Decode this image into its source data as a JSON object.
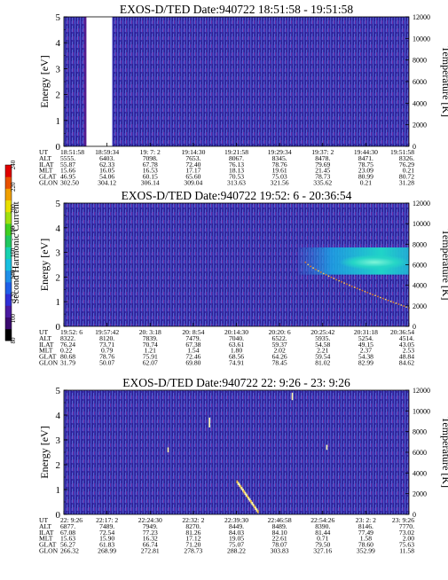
{
  "figure": {
    "energy_label": "Energy [eV]",
    "temperature_label": "Temperature [K]",
    "colorbar_label": "Second Harmonic Current",
    "colorbar_ticks": [
      "80",
      "100",
      "120",
      "140",
      "160",
      "180",
      "200",
      "220",
      "240"
    ]
  },
  "chart_data": [
    {
      "type": "heatmap",
      "title": "EXOS-D/TED   Date:940722  18:51:58 - 19:51:58",
      "ylabel": "Energy [eV]",
      "ylim": [
        0,
        5
      ],
      "yticks": [
        "0",
        "1",
        "2",
        "3",
        "4",
        "5"
      ],
      "y2label": "Temperature [K]",
      "y2lim": [
        0,
        12000
      ],
      "y2ticks": [
        "0",
        "2000",
        "4000",
        "6000",
        "8000",
        "10000",
        "12000"
      ],
      "data_gap": [
        0.065,
        0.14
      ],
      "features": [],
      "table": {
        "row_labels": [
          "UT",
          "ALT",
          "ILAT",
          "MLT",
          "GLAT",
          "GLON"
        ],
        "columns": [
          [
            "18:51:58",
            "5555.",
            "55.87",
            "15.66",
            "46.95",
            "302.50"
          ],
          [
            "18:59:34",
            "6403.",
            "62.33",
            "16.05",
            "54.06",
            "304.12"
          ],
          [
            "19: 7: 2",
            "7098.",
            "67.78",
            "16.53",
            "60.15",
            "306.14"
          ],
          [
            "19:14:30",
            "7653.",
            "72.40",
            "17.17",
            "65.60",
            "309.04"
          ],
          [
            "19:21:58",
            "8067.",
            "76.13",
            "18.13",
            "70.53",
            "313.63"
          ],
          [
            "19:29:34",
            "8345.",
            "78.76",
            "19.61",
            "75.03",
            "321.56"
          ],
          [
            "19:37: 2",
            "8478.",
            "79.69",
            "21.45",
            "78.73",
            "335.62"
          ],
          [
            "19:44:30",
            "8471.",
            "78.75",
            "23.09",
            "80.99",
            "0.21"
          ],
          [
            "19:51:58",
            "8326.",
            "76.29",
            "0.21",
            "80.72",
            "31.28"
          ]
        ]
      }
    },
    {
      "type": "heatmap",
      "title": "EXOS-D/TED   Date:940722  19:52: 6 - 20:36:54",
      "ylabel": "Energy [eV]",
      "ylim": [
        0,
        5
      ],
      "yticks": [
        "0",
        "1",
        "2",
        "3",
        "4",
        "5"
      ],
      "y2label": "Temperature [K]",
      "y2lim": [
        0,
        12000
      ],
      "y2ticks": [
        "0",
        "2000",
        "4000",
        "6000",
        "8000",
        "10000",
        "12000"
      ],
      "data_gap": null,
      "features": [
        {
          "kind": "band",
          "x": [
            0.68,
            1.0
          ],
          "y": [
            2.1,
            3.2
          ],
          "peak_y": 2.6,
          "peak_x": 0.9,
          "level": 180
        },
        {
          "kind": "trace",
          "x": [
            0.7,
            1.0
          ],
          "y": [
            2.6,
            0.75
          ],
          "level": 230
        }
      ],
      "table": {
        "row_labels": [
          "UT",
          "ALT",
          "ILAT",
          "MLT",
          "GLAT",
          "GLON"
        ],
        "columns": [
          [
            "19:52: 6",
            "8322.",
            "76.24",
            "0.22",
            "80.68",
            "31.79"
          ],
          [
            "19:57:42",
            "8120.",
            "73.71",
            "0.79",
            "78.76",
            "50.07"
          ],
          [
            "20: 3:18",
            "7839.",
            "70.74",
            "1.21",
            "75.91",
            "62.07"
          ],
          [
            "20: 8:54",
            "7479.",
            "67.38",
            "1.54",
            "72.46",
            "69.80"
          ],
          [
            "20:14:30",
            "7040.",
            "63.61",
            "1.80",
            "68.56",
            "74.91"
          ],
          [
            "20:20: 6",
            "6522.",
            "59.37",
            "2.02",
            "64.26",
            "78.45"
          ],
          [
            "20:25:42",
            "5935.",
            "54.58",
            "2.21",
            "59.54",
            "81.02"
          ],
          [
            "20:31:18",
            "5254.",
            "49.15",
            "2.37",
            "54.38",
            "82.99"
          ],
          [
            "20:36:54",
            "4514.",
            "43.05",
            "2.53",
            "48.84",
            "84.62"
          ]
        ]
      }
    },
    {
      "type": "heatmap",
      "title": "EXOS-D/TED   Date:940722  22: 9:26 - 23: 9:26",
      "ylabel": "Energy [eV]",
      "ylim": [
        0,
        5
      ],
      "yticks": [
        "0",
        "1",
        "2",
        "3",
        "4",
        "5"
      ],
      "y2label": "Temperature [K]",
      "y2lim": [
        0,
        12000
      ],
      "y2ticks": [
        "0",
        "2000",
        "4000",
        "6000",
        "8000",
        "10000",
        "12000"
      ],
      "data_gap": null,
      "features": [
        {
          "kind": "streak",
          "x": [
            0.5,
            0.56
          ],
          "y": [
            1.3,
            0.1
          ],
          "level": 240
        },
        {
          "kind": "spot",
          "x": [
            0.42,
            0.422
          ],
          "y": [
            3.5,
            3.9
          ],
          "level": 240
        },
        {
          "kind": "spot",
          "x": [
            0.66,
            0.664
          ],
          "y": [
            4.6,
            4.9
          ],
          "level": 240
        },
        {
          "kind": "spot",
          "x": [
            0.3,
            0.302
          ],
          "y": [
            2.5,
            2.7
          ],
          "level": 240
        },
        {
          "kind": "spot",
          "x": [
            0.76,
            0.763
          ],
          "y": [
            2.6,
            2.8
          ],
          "level": 240
        }
      ],
      "table": {
        "row_labels": [
          "UT",
          "ALT",
          "ILAT",
          "MLT",
          "GLAT",
          "GLON"
        ],
        "columns": [
          [
            "22: 9:26",
            "6877.",
            "67.08",
            "15.63",
            "56.27",
            "266.32"
          ],
          [
            "22:17: 2",
            "7489.",
            "72.54",
            "15.90",
            "61.83",
            "268.99"
          ],
          [
            "22:24:30",
            "7949.",
            "77.23",
            "16.32",
            "66.74",
            "272.81"
          ],
          [
            "22:32: 2",
            "8270.",
            "81.26",
            "17.12",
            "71.20",
            "278.73"
          ],
          [
            "22:39:30",
            "8449.",
            "84.03",
            "19.05",
            "75.07",
            "288.22"
          ],
          [
            "22:46:58",
            "8489.",
            "84.10",
            "22.61",
            "78.07",
            "303.83"
          ],
          [
            "22:54:26",
            "8390.",
            "81.44",
            "0.71",
            "79.50",
            "327.16"
          ],
          [
            "23: 2: 2",
            "8146.",
            "77.49",
            "1.58",
            "78.60",
            "352.99"
          ],
          [
            "23: 9:26",
            "7770.",
            "73.02",
            "2.00",
            "75.63",
            "11.58"
          ]
        ]
      }
    }
  ]
}
